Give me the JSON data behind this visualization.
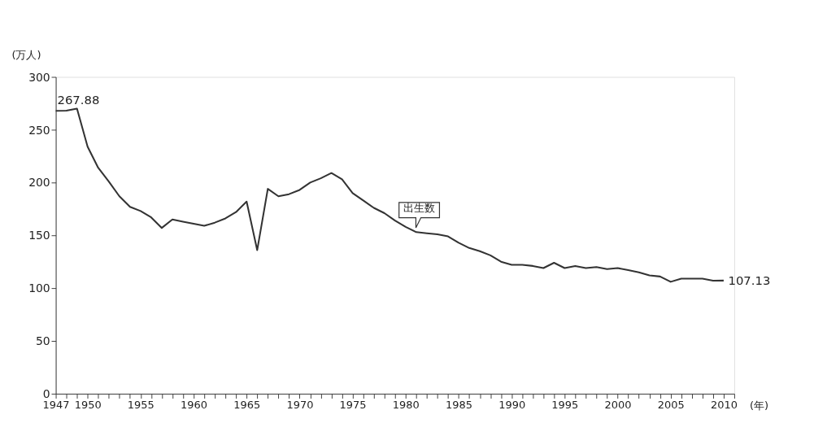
{
  "chart_data": {
    "type": "line",
    "xlabel": "(年)",
    "ylabel": "(万人)",
    "x": [
      1947,
      1948,
      1949,
      1950,
      1951,
      1952,
      1953,
      1954,
      1955,
      1956,
      1957,
      1958,
      1959,
      1960,
      1961,
      1962,
      1963,
      1964,
      1965,
      1966,
      1967,
      1968,
      1969,
      1970,
      1971,
      1972,
      1973,
      1974,
      1975,
      1976,
      1977,
      1978,
      1979,
      1980,
      1981,
      1982,
      1983,
      1984,
      1985,
      1986,
      1987,
      1988,
      1989,
      1990,
      1991,
      1992,
      1993,
      1994,
      1995,
      1996,
      1997,
      1998,
      1999,
      2000,
      2001,
      2002,
      2003,
      2004,
      2005,
      2006,
      2007,
      2008,
      2009,
      2010
    ],
    "series": [
      {
        "color": "#333333",
        "values": [
          267.88,
          268,
          270,
          234,
          214,
          201,
          187,
          177,
          173,
          167,
          157,
          165,
          163,
          161,
          159,
          162,
          166,
          172,
          182,
          136,
          194,
          187,
          189,
          193,
          200,
          204,
          209,
          203,
          190,
          183,
          176,
          171,
          164,
          158,
          153,
          152,
          151,
          149,
          143,
          138,
          135,
          131,
          125,
          122,
          122,
          121,
          119,
          124,
          119,
          121,
          119,
          120,
          118,
          119,
          117,
          115,
          112,
          111,
          106,
          109,
          109,
          109,
          107,
          107.13
        ]
      }
    ],
    "xlim": [
      1947,
      2011
    ],
    "xticks": [
      1947,
      {
        "value": 1948,
        "label": null
      },
      {
        "value": 1949,
        "label": null
      },
      1950,
      {
        "value": 1951,
        "label": null
      },
      {
        "value": 1952,
        "label": null
      },
      {
        "value": 1953,
        "label": null
      },
      {
        "value": 1954,
        "label": null
      },
      1955,
      {
        "value": 1956,
        "label": null
      },
      {
        "value": 1957,
        "label": null
      },
      {
        "value": 1958,
        "label": null
      },
      {
        "value": 1959,
        "label": null
      },
      1960,
      {
        "value": 1961,
        "label": null
      },
      {
        "value": 1962,
        "label": null
      },
      {
        "value": 1963,
        "label": null
      },
      {
        "value": 1964,
        "label": null
      },
      1965,
      {
        "value": 1966,
        "label": null
      },
      {
        "value": 1967,
        "label": null
      },
      {
        "value": 1968,
        "label": null
      },
      {
        "value": 1969,
        "label": null
      },
      1970,
      {
        "value": 1971,
        "label": null
      },
      {
        "value": 1972,
        "label": null
      },
      {
        "value": 1973,
        "label": null
      },
      {
        "value": 1974,
        "label": null
      },
      1975,
      {
        "value": 1976,
        "label": null
      },
      {
        "value": 1977,
        "label": null
      },
      {
        "value": 1978,
        "label": null
      },
      {
        "value": 1979,
        "label": null
      },
      1980,
      {
        "value": 1981,
        "label": null
      },
      {
        "value": 1982,
        "label": null
      },
      {
        "value": 1983,
        "label": null
      },
      {
        "value": 1984,
        "label": null
      },
      1985,
      {
        "value": 1986,
        "label": null
      },
      {
        "value": 1987,
        "label": null
      },
      {
        "value": 1988,
        "label": null
      },
      {
        "value": 1989,
        "label": null
      },
      1990,
      {
        "value": 1991,
        "label": null
      },
      {
        "value": 1992,
        "label": null
      },
      {
        "value": 1993,
        "label": null
      },
      {
        "value": 1994,
        "label": null
      },
      1995,
      {
        "value": 1996,
        "label": null
      },
      {
        "value": 1997,
        "label": null
      },
      {
        "value": 1998,
        "label": null
      },
      {
        "value": 1999,
        "label": null
      },
      2000,
      {
        "value": 2001,
        "label": null
      },
      {
        "value": 2002,
        "label": null
      },
      {
        "value": 2003,
        "label": null
      },
      {
        "value": 2004,
        "label": null
      },
      2005,
      {
        "value": 2006,
        "label": null
      },
      {
        "value": 2007,
        "label": null
      },
      {
        "value": 2008,
        "label": null
      },
      {
        "value": 2009,
        "label": null
      },
      2010,
      {
        "value": 2011,
        "label": null
      }
    ],
    "ylim": [
      0,
      300
    ],
    "yticks": [
      0,
      50,
      100,
      150,
      200,
      250,
      300
    ],
    "grid": false,
    "marker": "none",
    "line_style": "solid",
    "annotations": [
      {
        "text": "267.88",
        "x": 1947,
        "y": 267.88
      },
      {
        "text": "107.13",
        "x": 2010,
        "y": 107.13
      },
      {
        "text": "出生数",
        "x": 1981,
        "y": 152.9
      }
    ]
  }
}
